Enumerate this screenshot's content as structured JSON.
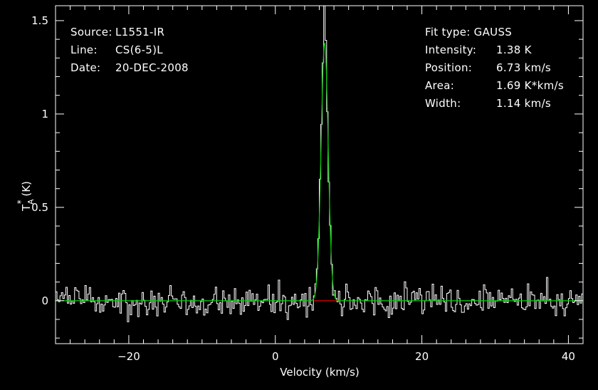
{
  "header_left": {
    "rows": [
      {
        "label": "Source:",
        "value": "L1551-IR"
      },
      {
        "label": "Line:",
        "value": "CS(6-5)L"
      },
      {
        "label": "Date:",
        "value": "20-DEC-2008"
      }
    ]
  },
  "header_right": {
    "fit_type": "Fit type: GAUSS",
    "rows": [
      {
        "label": "Intensity:",
        "value": "1.38 K"
      },
      {
        "label": "Position:",
        "value": "6.73 km/s"
      },
      {
        "label": "Area:",
        "value": "1.69 K*km/s"
      },
      {
        "label": "Width:",
        "value": "1.14 km/s"
      }
    ]
  },
  "chart_data": {
    "type": "line",
    "xlabel": "Velocity (km/s)",
    "ylabel_main": "T",
    "ylabel_sub": "A",
    "ylabel_sup": "*",
    "ylabel_unit": " (K)",
    "xlim": [
      -30,
      42
    ],
    "ylim": [
      -0.23,
      1.58
    ],
    "xticks": [
      -20,
      0,
      20,
      40
    ],
    "xtick_labels": [
      "−20",
      "0",
      "20",
      "40"
    ],
    "yticks": [
      0,
      0.5,
      1,
      1.5
    ],
    "ytick_labels": [
      "0",
      "0.5",
      "1",
      "1.5"
    ],
    "channel_width": 0.2,
    "noise_rms": 0.04,
    "series": [
      {
        "style": "histogram",
        "color": "#ffffff"
      },
      {
        "style": "gaussian_fit",
        "color": "#00cc00",
        "amplitude": 1.38,
        "center": 6.73,
        "fwhm": 1.14
      },
      {
        "style": "baseline_window",
        "color": "#ff0000",
        "x": [
          5.2,
          8.9
        ],
        "y": 0
      }
    ],
    "grid": false,
    "legend": "none"
  }
}
